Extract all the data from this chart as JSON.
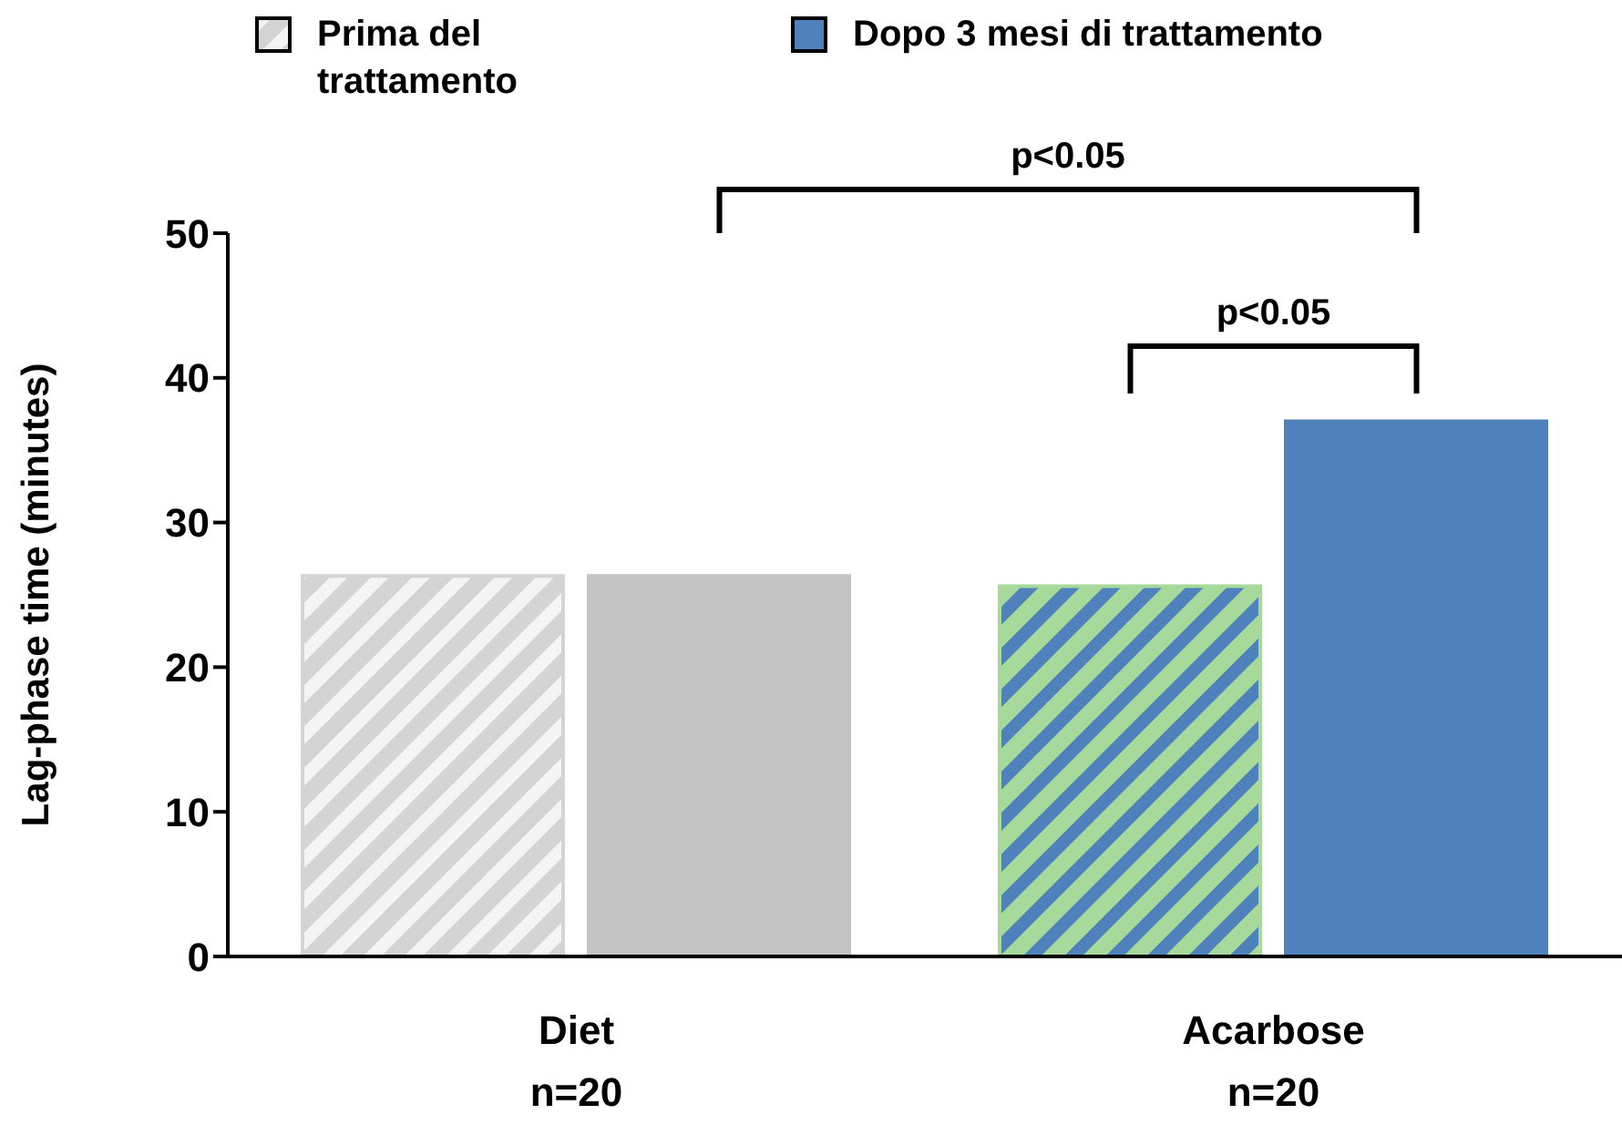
{
  "chart_data": {
    "type": "bar",
    "ylabel": "Lag-phase time (minutes)",
    "categories": [
      "Diet\nn=20",
      "Acarbose\nn=20"
    ],
    "series": [
      {
        "name": "Prima del trattamento",
        "colors": [
          "#d4d4d4",
          "#a6d99a"
        ],
        "values": [
          26.3,
          25.6
        ]
      },
      {
        "name": "Dopo 3 mesi di trattamento",
        "colors": [
          "#c4c4c4",
          "#4f81bd"
        ],
        "values": [
          26.3,
          37.0
        ]
      }
    ],
    "ylim": [
      0,
      50
    ],
    "yticks": [
      0,
      10,
      20,
      30,
      40,
      50
    ],
    "grid": false,
    "legend": "top",
    "annotations": [
      "p<0.05",
      "p<0.05"
    ]
  }
}
